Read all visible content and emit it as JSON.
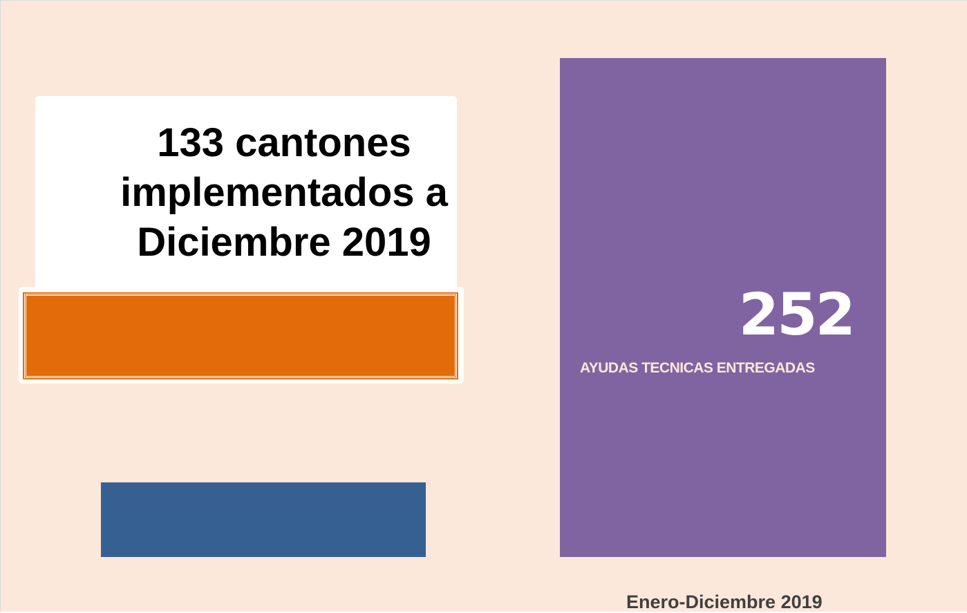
{
  "left_card": {
    "title": "133 cantones implementados a Diciembre 2019"
  },
  "right_card": {
    "number": "252",
    "label": "AYUDAS TECNICAS ENTREGADAS"
  },
  "footer": "Enero-Diciembre 2019"
}
